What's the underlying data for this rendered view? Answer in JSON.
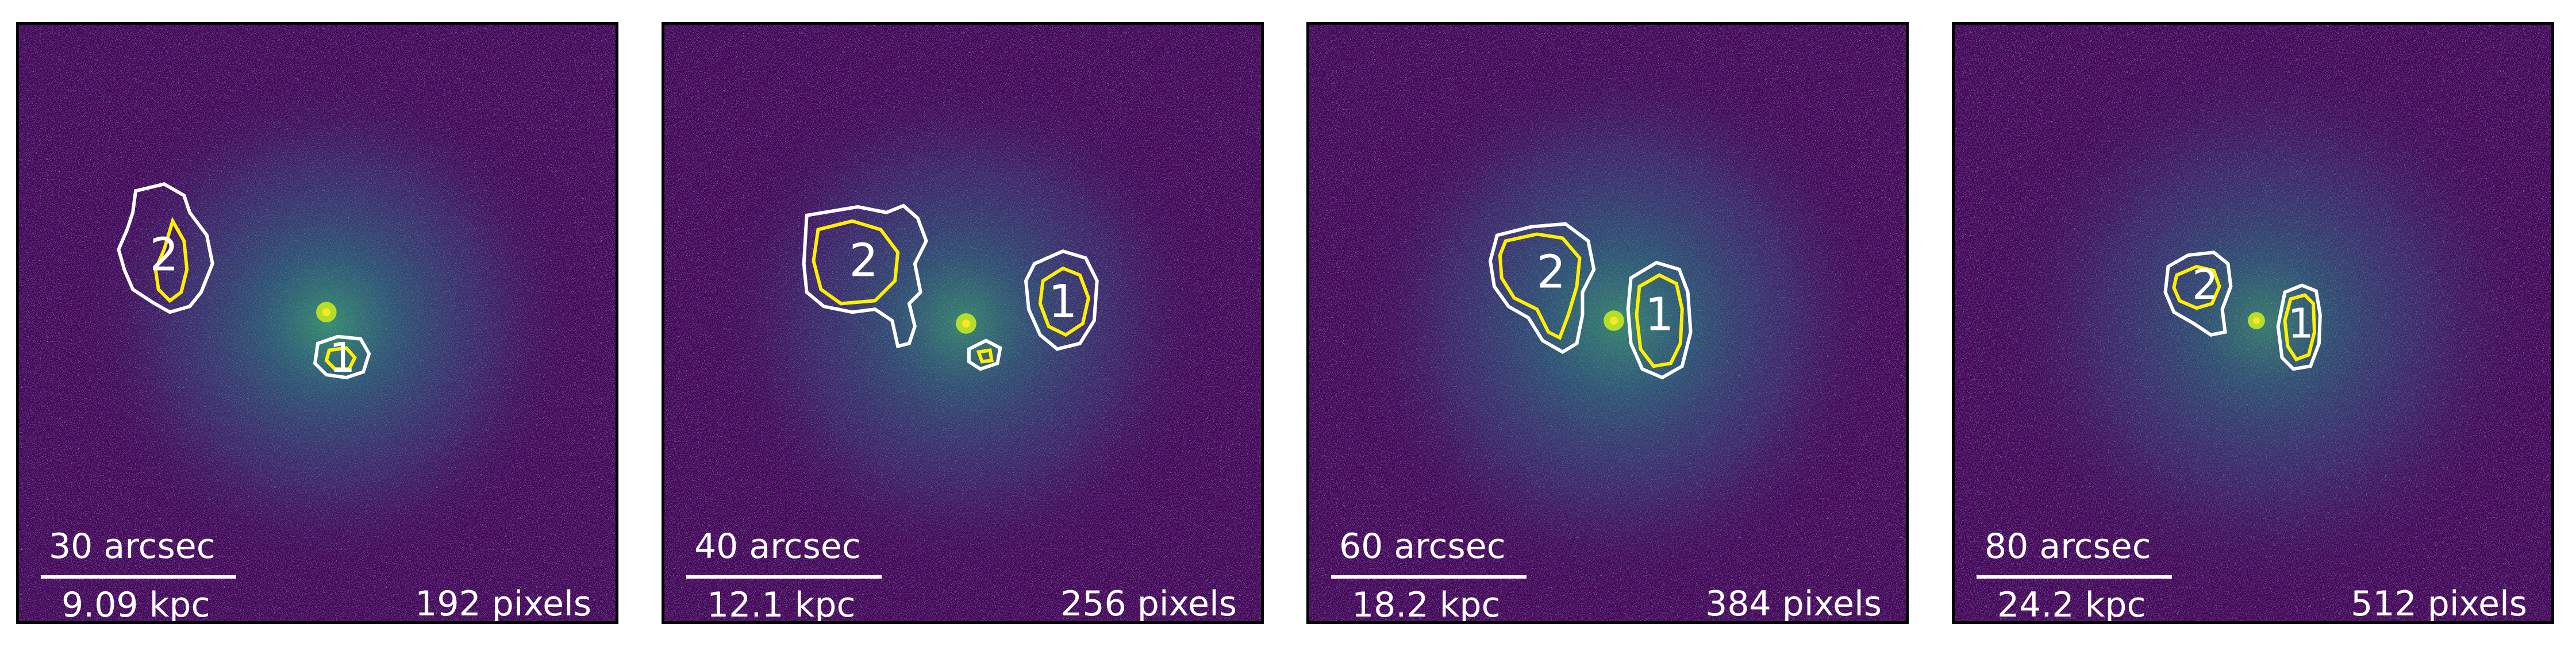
{
  "panels": [
    {
      "angle_label": "30 arcsec",
      "distance_label": "9.09 kpc",
      "pixels_label": "192 pixels",
      "region1_label": "1",
      "region2_label": "2"
    },
    {
      "angle_label": "40 arcsec",
      "distance_label": "12.1 kpc",
      "pixels_label": "256 pixels",
      "region1_label": "1",
      "region2_label": "2"
    },
    {
      "angle_label": "60 arcsec",
      "distance_label": "18.2 kpc",
      "pixels_label": "384 pixels",
      "region1_label": "1",
      "region2_label": "2"
    },
    {
      "angle_label": "80 arcsec",
      "distance_label": "24.2 kpc",
      "pixels_label": "512 pixels",
      "region1_label": "1",
      "region2_label": "2"
    }
  ],
  "colors": {
    "background": "#440154",
    "noise_low": "#3b528b",
    "noise_high": "#21918c",
    "core": "#fde725",
    "contour_outer": "#ffffff",
    "contour_inner": "#ffef00"
  }
}
